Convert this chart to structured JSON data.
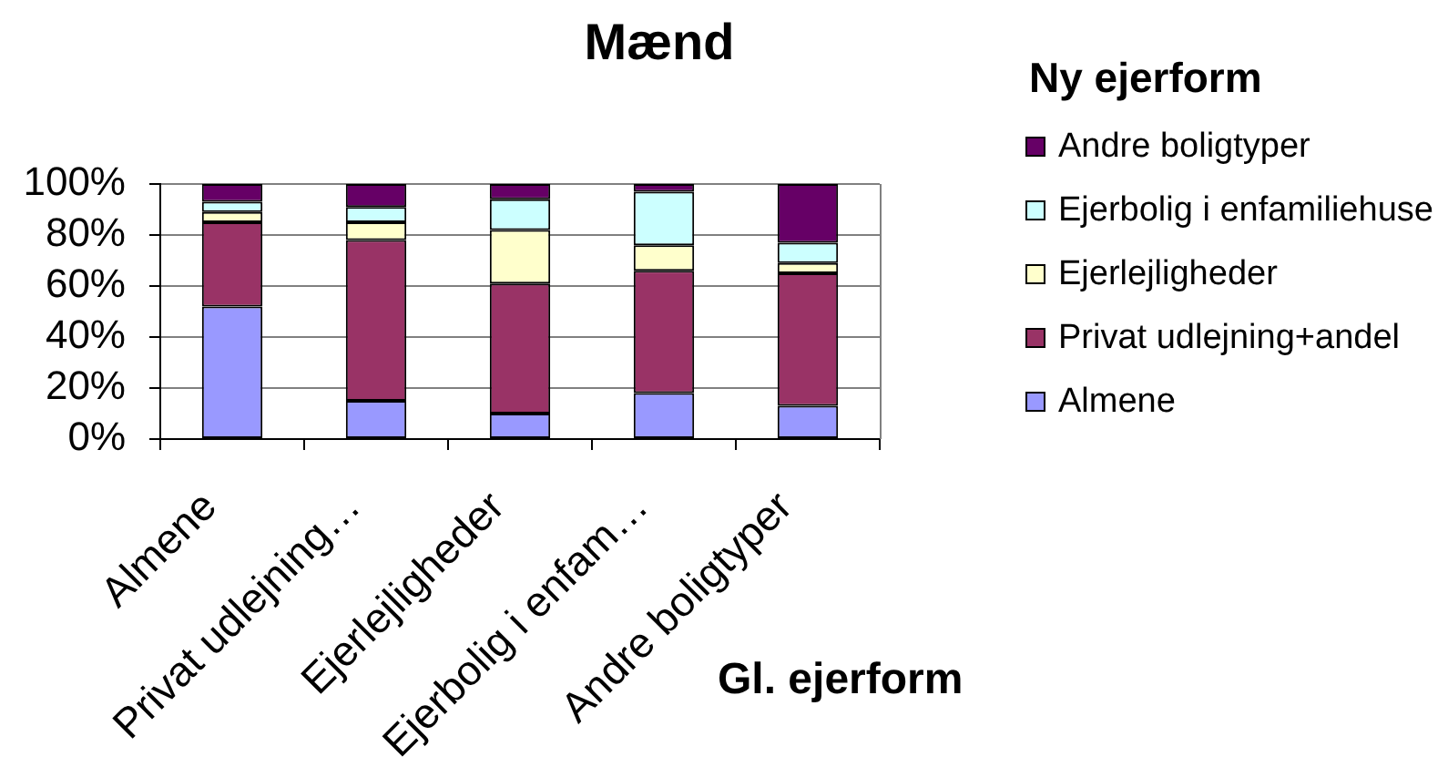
{
  "chart_data": {
    "type": "bar",
    "title": "Mænd",
    "xlabel": "Gl. ejerform",
    "legend_title": "Ny ejerform",
    "categories": [
      "Almene",
      "Privat udlejning…",
      "Ejerlejligheder",
      "Ejerbolig i enfam…",
      "Andre boligtyper"
    ],
    "stacked": true,
    "series": [
      {
        "name": "Almene",
        "color": "#9999ff",
        "values": [
          52,
          15,
          10,
          18,
          13
        ]
      },
      {
        "name": "Privat udlejning+andel",
        "color": "#993366",
        "values": [
          33,
          63,
          51,
          48,
          52
        ]
      },
      {
        "name": "Ejerlejligheder",
        "color": "#ffffcc",
        "values": [
          4,
          7,
          21,
          10,
          4
        ]
      },
      {
        "name": "Ejerbolig i enfamiliehuse",
        "color": "#ccffff",
        "values": [
          4,
          6,
          12,
          21,
          8
        ]
      },
      {
        "name": "Andre boligtyper",
        "color": "#660066",
        "values": [
          7,
          9,
          6,
          3,
          23
        ]
      }
    ],
    "ylim": [
      0,
      100
    ],
    "yticks": [
      {
        "value": 0,
        "label": "0%"
      },
      {
        "value": 20,
        "label": "20%"
      },
      {
        "value": 40,
        "label": "40%"
      },
      {
        "value": 60,
        "label": "60%"
      },
      {
        "value": 80,
        "label": "80%"
      },
      {
        "value": 100,
        "label": "100%"
      }
    ],
    "grid": "y",
    "legend": "right"
  }
}
